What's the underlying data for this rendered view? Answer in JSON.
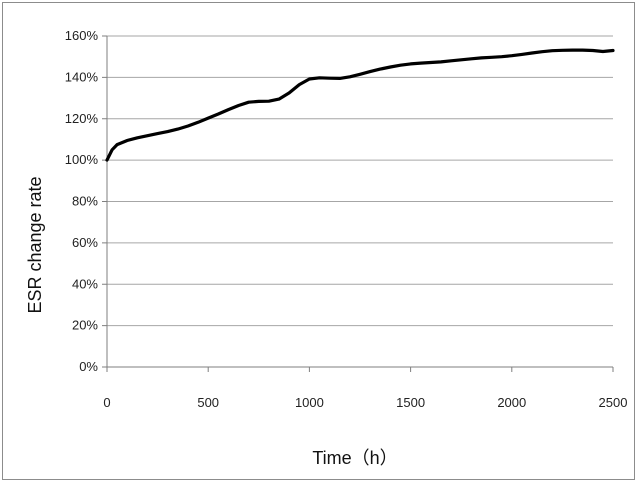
{
  "chart_data": {
    "type": "line",
    "title": "",
    "xlabel": "Time（h）",
    "ylabel": "ESR change rate",
    "xlim": [
      0,
      2500
    ],
    "ylim": [
      0,
      160
    ],
    "x_ticks": [
      0,
      500,
      1000,
      1500,
      2000,
      2500
    ],
    "x_tick_labels": [
      "0",
      "500",
      "1000",
      "1500",
      "2000",
      "2500"
    ],
    "y_ticks": [
      0,
      20,
      40,
      60,
      80,
      100,
      120,
      140,
      160
    ],
    "y_tick_labels": [
      "0%",
      "20%",
      "40%",
      "60%",
      "80%",
      "100%",
      "120%",
      "140%",
      "160%"
    ],
    "grid": "horizontal",
    "legend": "none",
    "series": [
      {
        "color": "#000000",
        "x": [
          0,
          25,
          50,
          100,
          150,
          200,
          250,
          300,
          350,
          400,
          450,
          500,
          550,
          600,
          650,
          700,
          750,
          800,
          850,
          900,
          950,
          1000,
          1050,
          1100,
          1150,
          1200,
          1250,
          1300,
          1350,
          1400,
          1450,
          1500,
          1550,
          1600,
          1650,
          1700,
          1750,
          1800,
          1850,
          1900,
          1950,
          2000,
          2050,
          2100,
          2150,
          2200,
          2250,
          2300,
          2350,
          2400,
          2450,
          2500
        ],
        "values": [
          100,
          105,
          107.5,
          109.5,
          110.8,
          111.8,
          112.8,
          113.8,
          115,
          116.5,
          118.3,
          120.3,
          122.3,
          124.4,
          126.4,
          128,
          128.4,
          128.5,
          129.5,
          132.5,
          136.5,
          139.2,
          139.8,
          139.6,
          139.5,
          140.3,
          141.5,
          142.8,
          144,
          145,
          145.9,
          146.5,
          146.9,
          147.2,
          147.5,
          148,
          148.5,
          149,
          149.4,
          149.7,
          150,
          150.5,
          151.1,
          151.8,
          152.4,
          152.9,
          153.1,
          153.2,
          153.2,
          153,
          152.5,
          153
        ]
      }
    ]
  }
}
